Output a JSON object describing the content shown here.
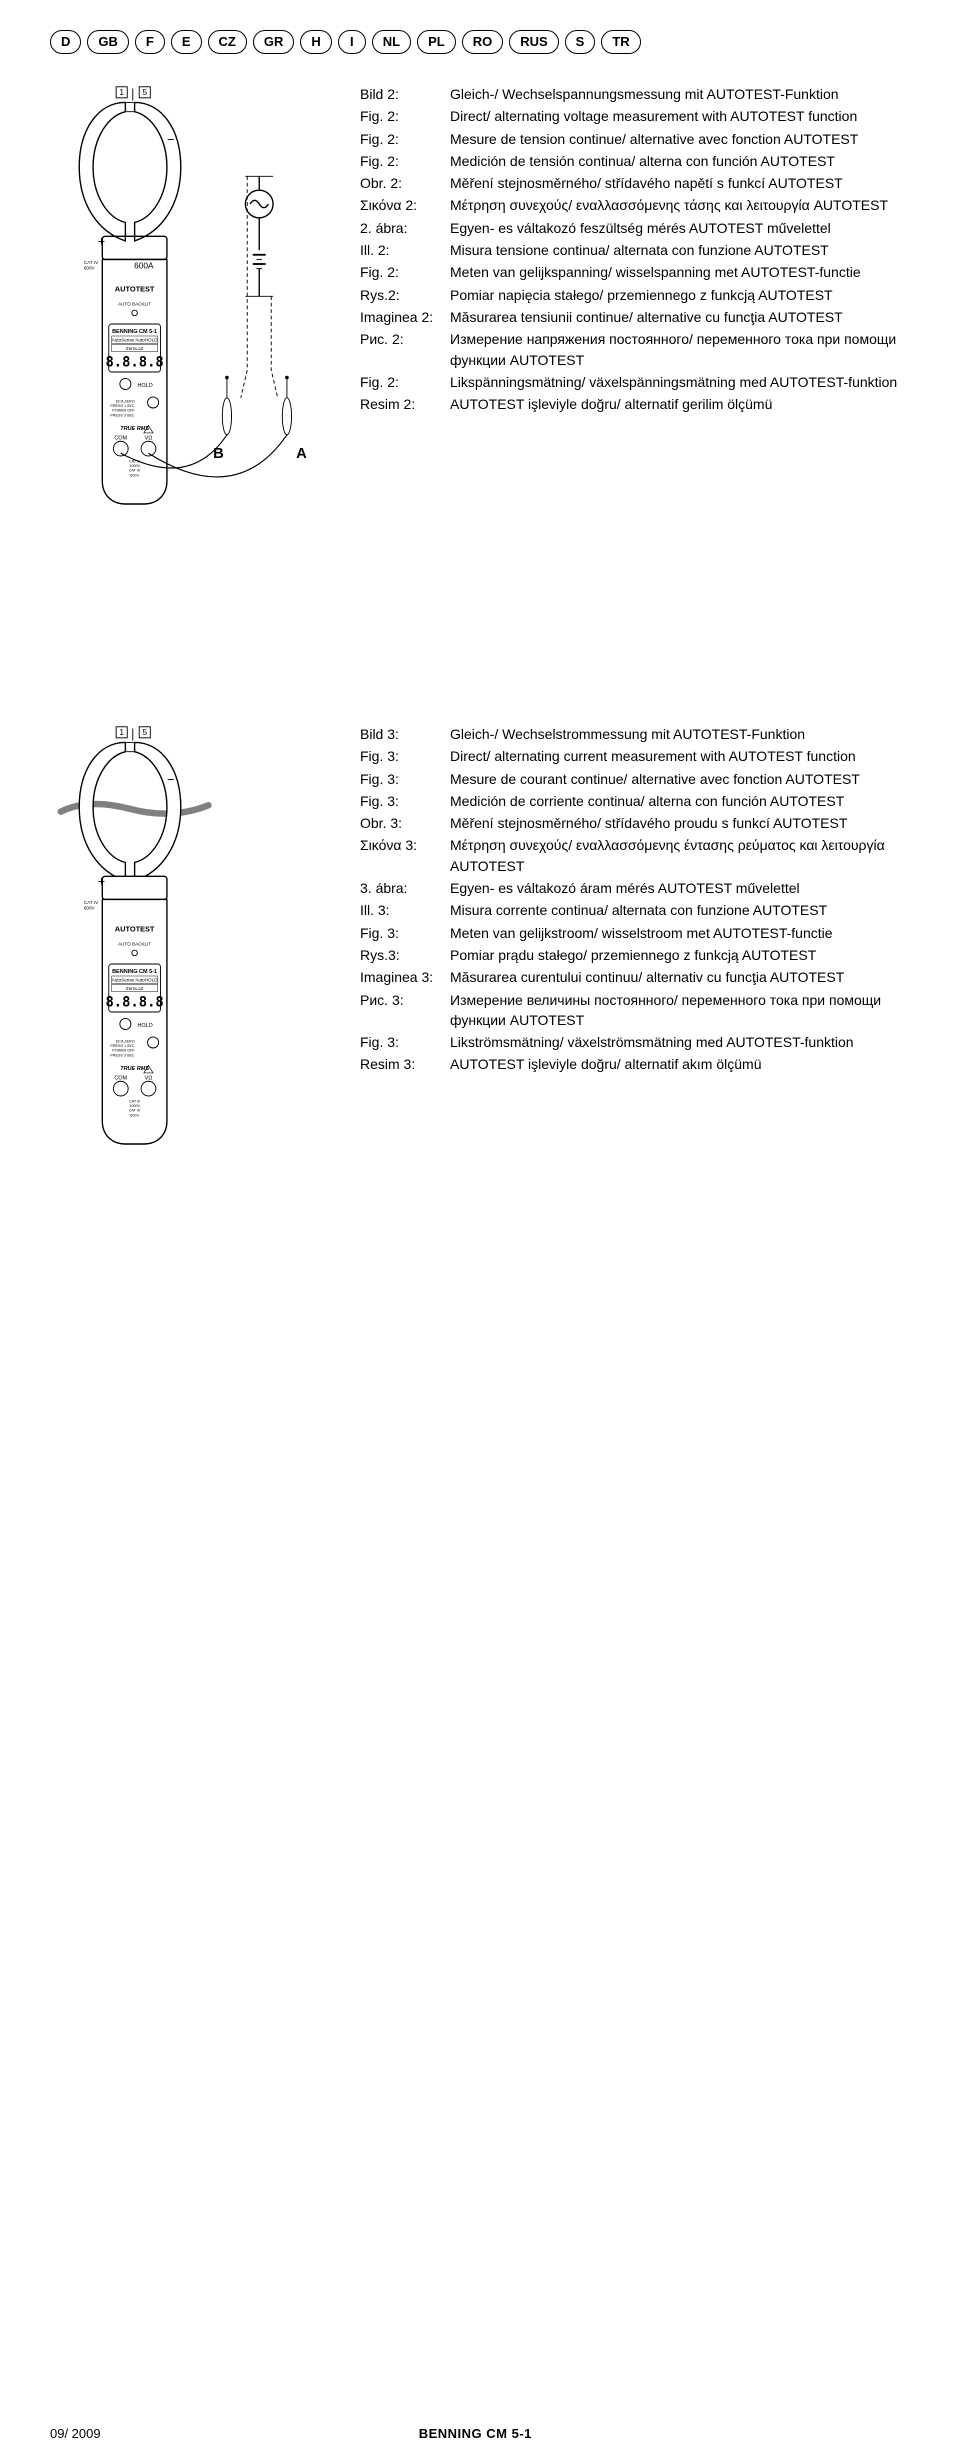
{
  "lang_codes": [
    "D",
    "GB",
    "F",
    "E",
    "CZ",
    "GR",
    "H",
    "I",
    "NL",
    "PL",
    "RO",
    "RUS",
    "S",
    "TR"
  ],
  "section2": {
    "entries": [
      {
        "label": "Bild 2:",
        "desc": "Gleich-/ Wechselspannungsmessung mit AUTOTEST-Funktion"
      },
      {
        "label": "Fig. 2:",
        "desc": "Direct/ alternating voltage measurement with AUTOTEST function"
      },
      {
        "label": "Fig. 2:",
        "desc": "Mesure de tension continue/ alternative avec fonction AUTOTEST"
      },
      {
        "label": "Fig. 2:",
        "desc": "Medición de tensión continua/ alterna con función AUTOTEST"
      },
      {
        "label": "Obr. 2:",
        "desc": "Měření stejnosměrného/ střídavého napětí s funkcí AUTOTEST"
      },
      {
        "label": "Σικόνα 2:",
        "desc": "Μέτρηση συνεχούς/ εναλλασσόμενης τάσης και λειτουργία AUTOTEST"
      },
      {
        "label": "2. ábra:",
        "desc": "Egyen- es váltakozó feszültség mérés AUTOTEST művelettel"
      },
      {
        "label": "Ill. 2:",
        "desc": "Misura tensione continua/ alternata con funzione AUTOTEST"
      },
      {
        "label": "Fig. 2:",
        "desc": "Meten van gelijkspanning/ wisselspanning met AUTOTEST-functie"
      },
      {
        "label": "Rys.2:",
        "desc": "Pomiar napięcia stałego/ przemiennego z funkcją AUTOTEST"
      },
      {
        "label": "Imaginea 2:",
        "desc": "Măsurarea tensiunii continue/ alternative cu funcţia AUTOTEST"
      },
      {
        "label": "Рис. 2:",
        "desc": "Измерение напряжения постоянного/ переменного тока при помощи функции AUTOTEST"
      },
      {
        "label": "Fig. 2:",
        "desc": "Likspänningsmätning/ växelspänningsmätning med AUTOTEST-funktion"
      },
      {
        "label": "Resim 2:",
        "desc": "AUTOTEST işleviyle doğru/ alternatif gerilim ölçümü"
      }
    ]
  },
  "section3": {
    "entries": [
      {
        "label": "Bild 3:",
        "desc": "Gleich-/ Wechselstrommessung mit AUTOTEST-Funktion"
      },
      {
        "label": "Fig. 3:",
        "desc": "Direct/ alternating current measurement with AUTOTEST function"
      },
      {
        "label": "Fig. 3:",
        "desc": "Mesure de courant continue/ alternative avec fonction AUTOTEST"
      },
      {
        "label": "Fig. 3:",
        "desc": "Medición de corriente continua/ alterna con función AUTOTEST"
      },
      {
        "label": "Obr. 3:",
        "desc": "Měření stejnosměrného/ střídavého proudu s funkcí AUTOTEST"
      },
      {
        "label": "Σικόνα 3:",
        "desc": "Μέτρηση συνεχούς/ εναλλασσόμενης έντασης ρεύματος και λειτουργία AUTOTEST"
      },
      {
        "label": "3. ábra:",
        "desc": "Egyen- es váltakozó áram mérés AUTOTEST művelettel"
      },
      {
        "label": "Ill. 3:",
        "desc": "Misura corrente continua/ alternata con funzione AUTOTEST"
      },
      {
        "label": "Fig. 3:",
        "desc": "Meten van gelijkstroom/ wisselstroom met AUTOTEST-functie"
      },
      {
        "label": "Rys.3:",
        "desc": "Pomiar prądu stałego/ przemiennego z funkcją AUTOTEST"
      },
      {
        "label": "Imaginea 3:",
        "desc": "Măsurarea curentului continuu/ alternativ cu funcţia AUTOTEST"
      },
      {
        "label": "Рис. 3:",
        "desc": "Измерение величины постоянного/ переменного тока при помощи функции AUTOTEST"
      },
      {
        "label": "Fig. 3:",
        "desc": "Likströmsmätning/ växelströmsmätning med AUTOTEST-funktion"
      },
      {
        "label": "Resim 3:",
        "desc": "AUTOTEST işleviyle doğru/ alternatif akım ölçümü"
      }
    ]
  },
  "labels": {
    "autotest": "AUTOTEST",
    "autobacklit": "AUTO BACKLIT",
    "benning": "BENNING CM 5-1",
    "autosense": "AutoSense AutoHOLD",
    "zeroloz": "ZeroLoZ",
    "digits": "8.8.8.8",
    "hold": "HOLD",
    "dcazero": "DCA ZERO\nPRESS 1 SEC",
    "poweroff": "POWER OFF\nPRESS 3 SEC",
    "truerms": "TRUE RMS",
    "com": "COM",
    "vohm": "VΩ",
    "amp": "600A",
    "catiii": "CAT III\n1000V",
    "cativ": "CAT IV\n600V",
    "probe_a": "A",
    "probe_b": "B",
    "num_1": "1",
    "num_5": "5"
  },
  "footer": {
    "date": "09/ 2009",
    "product": "BENNING CM 5-1"
  },
  "colors": {
    "stroke": "#000000",
    "fill": "#ffffff",
    "gray": "#808080"
  }
}
